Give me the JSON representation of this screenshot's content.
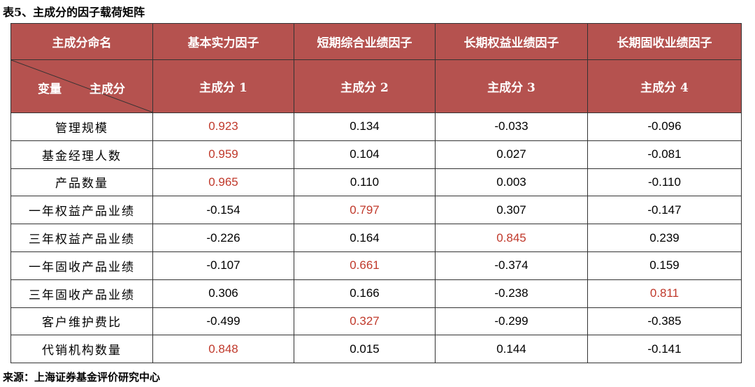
{
  "title": "表5、主成分的因子载荷矩阵",
  "table": {
    "header": [
      "主成分命名",
      "基本实力因子",
      "短期综合业绩因子",
      "长期权益业绩因子",
      "长期固收业绩因子"
    ],
    "subheader": {
      "corner_left": "变量",
      "corner_right": "主成分",
      "columns": [
        "主成分 1",
        "主成分 2",
        "主成分 3",
        "主成分 4"
      ]
    },
    "rows": [
      [
        "管理规模",
        "0.923",
        "0.134",
        "-0.033",
        "-0.096"
      ],
      [
        "基金经理人数",
        "0.959",
        "0.104",
        "0.027",
        "-0.081"
      ],
      [
        "产品数量",
        "0.965",
        "0.110",
        "0.003",
        "-0.110"
      ],
      [
        "一年权益产品业绩",
        "-0.154",
        "0.797",
        "0.307",
        "-0.147"
      ],
      [
        "三年权益产品业绩",
        "-0.226",
        "0.164",
        "0.845",
        "0.239"
      ],
      [
        "一年固收产品业绩",
        "-0.107",
        "0.661",
        "-0.374",
        "0.159"
      ],
      [
        "三年固收产品业绩",
        "0.306",
        "0.166",
        "-0.238",
        "0.811"
      ],
      [
        "客户维护费比",
        "-0.499",
        "0.327",
        "-0.299",
        "-0.385"
      ],
      [
        "代销机构数量",
        "0.848",
        "0.015",
        "0.144",
        "-0.141"
      ]
    ]
  },
  "source": "来源：上海证券基金评价研究中心"
}
